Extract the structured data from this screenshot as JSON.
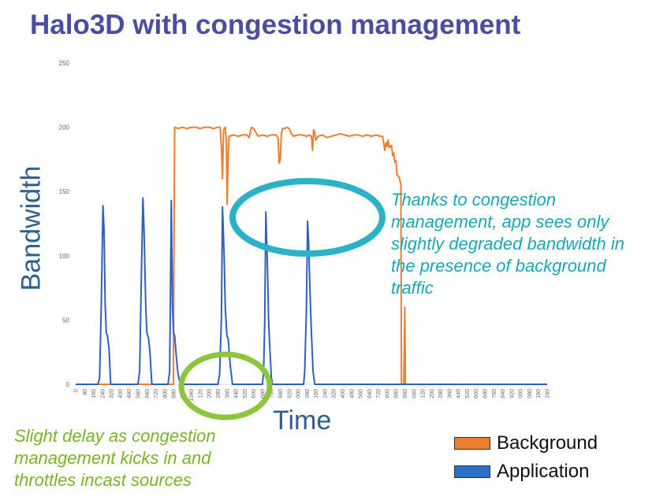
{
  "slide": {
    "title": "Halo3D with congestion management"
  },
  "annotations": {
    "right": "Thanks to congestion management, app sees only slightly degraded bandwidth in the presence of background traffic",
    "left": "Slight delay as congestion management kicks in and throttles incast sources",
    "highlight_colors": {
      "right": "#2bb2c7",
      "left": "#8cc63f"
    }
  },
  "chart_data": {
    "type": "line",
    "xlabel": "Time",
    "ylabel": "Bandwidth",
    "ylim": [
      0,
      250
    ],
    "yticks": [
      0,
      50,
      100,
      150,
      200,
      250
    ],
    "grid": false,
    "legend_position": "bottom-right",
    "x_tick_labels": [
      "0",
      "80",
      "160",
      "240",
      "320",
      "400",
      "480",
      "560",
      "640",
      "720",
      "800",
      "880",
      "960",
      "1040",
      "1120",
      "1200",
      "1280",
      "1360",
      "1440",
      "1520",
      "1600",
      "1680",
      "1760",
      "1840",
      "1920",
      "2000",
      "2080",
      "2160",
      "2240",
      "2320",
      "2400",
      "2480",
      "2560",
      "2640",
      "2720",
      "2800",
      "2880",
      "2960",
      "3040",
      "3120",
      "3200",
      "3280",
      "3360",
      "3440",
      "3520",
      "3600",
      "3680",
      "3760",
      "3840",
      "3920",
      "4000",
      "4080",
      "4160",
      "4240"
    ],
    "x_tick_labels_shown": [
      "0",
      "80",
      "160",
      "240",
      "320",
      "400",
      "480",
      "560",
      "640",
      "720",
      "800",
      "880",
      "960",
      "1040",
      "120",
      "200",
      "280",
      "360",
      "440",
      "520",
      "600",
      "680",
      "760",
      "840",
      "920",
      "000",
      "080",
      "160",
      "240",
      "320",
      "400",
      "480",
      "560",
      "640",
      "720",
      "800",
      "880",
      "960",
      "040",
      "120",
      "200",
      "280",
      "360",
      "440",
      "520",
      "600",
      "680",
      "760",
      "840",
      "920",
      "000",
      "080",
      "160",
      "240"
    ],
    "series": [
      {
        "name": "Background",
        "color": "#ed7d31",
        "points": [
          [
            0,
            0
          ],
          [
            880,
            0
          ],
          [
            880,
            40
          ],
          [
            890,
            200
          ],
          [
            920,
            199
          ],
          [
            960,
            200
          ],
          [
            1000,
            199
          ],
          [
            1040,
            200
          ],
          [
            1080,
            200
          ],
          [
            1120,
            199
          ],
          [
            1160,
            200
          ],
          [
            1200,
            200
          ],
          [
            1240,
            199
          ],
          [
            1280,
            200
          ],
          [
            1300,
            200
          ],
          [
            1310,
            185
          ],
          [
            1320,
            160
          ],
          [
            1330,
            198
          ],
          [
            1345,
            200
          ],
          [
            1355,
            190
          ],
          [
            1362,
            140
          ],
          [
            1372,
            180
          ],
          [
            1380,
            193
          ],
          [
            1420,
            194
          ],
          [
            1460,
            193
          ],
          [
            1500,
            194
          ],
          [
            1540,
            194
          ],
          [
            1560,
            192
          ],
          [
            1580,
            200
          ],
          [
            1600,
            199
          ],
          [
            1620,
            196
          ],
          [
            1640,
            193
          ],
          [
            1680,
            194
          ],
          [
            1720,
            193
          ],
          [
            1760,
            194
          ],
          [
            1800,
            194
          ],
          [
            1820,
            192
          ],
          [
            1830,
            172
          ],
          [
            1840,
            175
          ],
          [
            1850,
            195
          ],
          [
            1860,
            199
          ],
          [
            1880,
            199
          ],
          [
            1900,
            200
          ],
          [
            1920,
            199
          ],
          [
            1940,
            195
          ],
          [
            1960,
            193
          ],
          [
            2000,
            194
          ],
          [
            2040,
            194
          ],
          [
            2080,
            193
          ],
          [
            2100,
            194
          ],
          [
            2120,
            193
          ],
          [
            2130,
            182
          ],
          [
            2140,
            198
          ],
          [
            2150,
            196
          ],
          [
            2160,
            190
          ],
          [
            2180,
            193
          ],
          [
            2220,
            194
          ],
          [
            2260,
            192
          ],
          [
            2300,
            193
          ],
          [
            2340,
            194
          ],
          [
            2380,
            195
          ],
          [
            2420,
            194
          ],
          [
            2460,
            193
          ],
          [
            2500,
            194
          ],
          [
            2540,
            194
          ],
          [
            2580,
            193
          ],
          [
            2620,
            194
          ],
          [
            2660,
            193
          ],
          [
            2700,
            194
          ],
          [
            2740,
            193
          ],
          [
            2760,
            193
          ],
          [
            2780,
            182
          ],
          [
            2790,
            188
          ],
          [
            2800,
            185
          ],
          [
            2810,
            190
          ],
          [
            2820,
            184
          ],
          [
            2840,
            186
          ],
          [
            2850,
            178
          ],
          [
            2860,
            180
          ],
          [
            2870,
            173
          ],
          [
            2880,
            174
          ],
          [
            2890,
            163
          ],
          [
            2900,
            162
          ],
          [
            2910,
            161
          ],
          [
            2920,
            157
          ],
          [
            2925,
            156
          ],
          [
            2930,
            0
          ],
          [
            2940,
            0
          ],
          [
            2950,
            0
          ],
          [
            2960,
            60
          ],
          [
            2965,
            0
          ],
          [
            4240,
            0
          ]
        ]
      },
      {
        "name": "Application",
        "color": "#2f5fbf",
        "points": [
          [
            0,
            0
          ],
          [
            160,
            0
          ],
          [
            200,
            0
          ],
          [
            215,
            5
          ],
          [
            230,
            60
          ],
          [
            245,
            139
          ],
          [
            255,
            120
          ],
          [
            265,
            62
          ],
          [
            275,
            40
          ],
          [
            285,
            38
          ],
          [
            300,
            28
          ],
          [
            315,
            0
          ],
          [
            560,
            0
          ],
          [
            575,
            10
          ],
          [
            590,
            80
          ],
          [
            605,
            145
          ],
          [
            615,
            120
          ],
          [
            630,
            60
          ],
          [
            640,
            40
          ],
          [
            655,
            36
          ],
          [
            668,
            25
          ],
          [
            685,
            0
          ],
          [
            830,
            0
          ],
          [
            845,
            10
          ],
          [
            860,
            143
          ],
          [
            870,
            62
          ],
          [
            880,
            40
          ],
          [
            890,
            38
          ],
          [
            905,
            22
          ],
          [
            920,
            8
          ],
          [
            940,
            0
          ],
          [
            1280,
            0
          ],
          [
            1295,
            8
          ],
          [
            1310,
            50
          ],
          [
            1320,
            138
          ],
          [
            1335,
            100
          ],
          [
            1345,
            60
          ],
          [
            1360,
            38
          ],
          [
            1372,
            35
          ],
          [
            1390,
            15
          ],
          [
            1410,
            0
          ],
          [
            1680,
            0
          ],
          [
            1690,
            10
          ],
          [
            1700,
            50
          ],
          [
            1710,
            134
          ],
          [
            1725,
            90
          ],
          [
            1735,
            50
          ],
          [
            1745,
            30
          ],
          [
            1760,
            5
          ],
          [
            1770,
            0
          ],
          [
            2050,
            0
          ],
          [
            2060,
            10
          ],
          [
            2075,
            60
          ],
          [
            2085,
            127
          ],
          [
            2095,
            110
          ],
          [
            2108,
            70
          ],
          [
            2120,
            40
          ],
          [
            2135,
            10
          ],
          [
            2150,
            0
          ],
          [
            4240,
            0
          ]
        ]
      }
    ]
  }
}
